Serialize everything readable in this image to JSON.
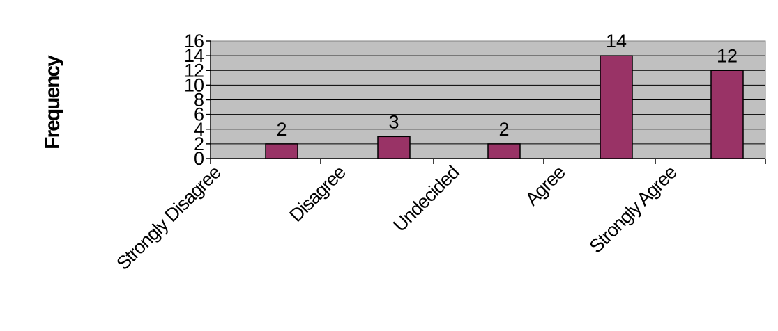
{
  "chart_data": {
    "type": "bar",
    "title": "",
    "xlabel": "",
    "ylabel": "Frequency",
    "categories": [
      "Strongly Disagree",
      "Disagree",
      "Undecided",
      "Agree",
      "Strongly Agree"
    ],
    "values": [
      2,
      3,
      2,
      14,
      12
    ],
    "data_labels": [
      "2",
      "3",
      "2",
      "14",
      "12"
    ],
    "ylim": [
      0,
      16
    ],
    "yticks": [
      "0",
      "2",
      "4",
      "6",
      "8",
      "10",
      "12",
      "14",
      "16"
    ],
    "grid": true,
    "legend": "none",
    "colors": {
      "bar": "#993366",
      "plot_background": "#c0c0c0",
      "gridline": "#000000"
    }
  }
}
